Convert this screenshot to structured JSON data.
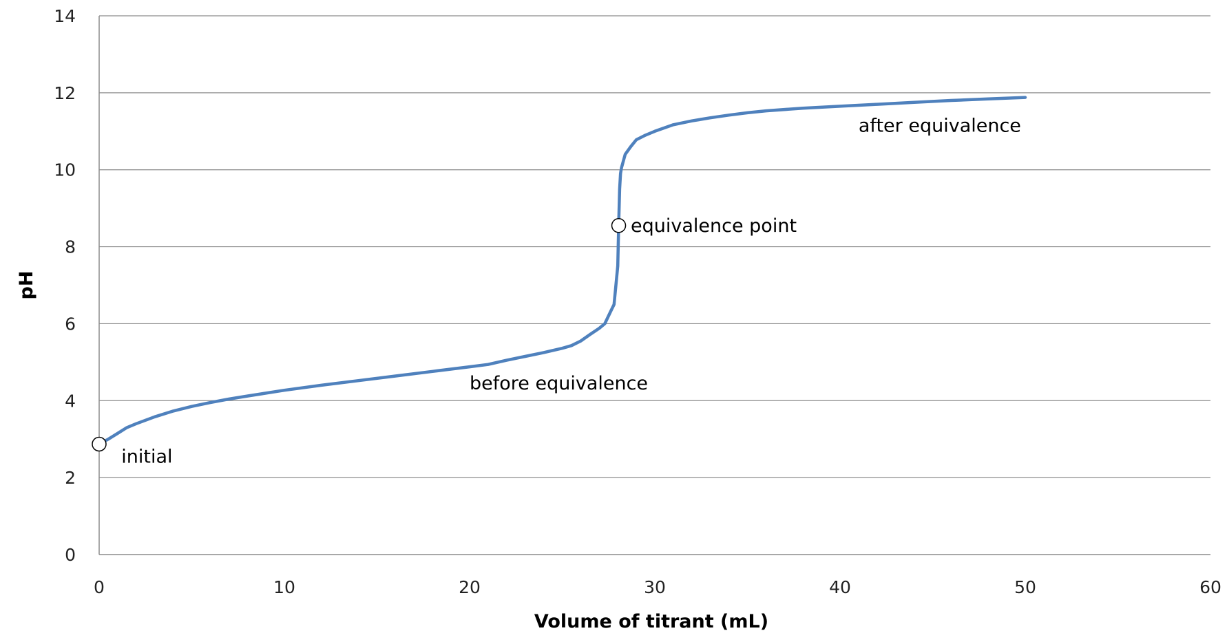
{
  "chart_data": {
    "type": "line",
    "xlabel": "Volume of titrant (mL)",
    "ylabel": "pH",
    "xlim": [
      0,
      60
    ],
    "ylim": [
      0,
      14
    ],
    "xticks": [
      "0",
      "10",
      "20",
      "30",
      "40",
      "50",
      "60"
    ],
    "yticks": [
      "0",
      "2",
      "4",
      "6",
      "8",
      "10",
      "12",
      "14"
    ],
    "grid": "horizontal",
    "line_color": "#4f81bd",
    "series": [
      {
        "x": [
          0,
          0.5,
          1,
          1.5,
          2,
          3,
          4,
          5,
          6,
          7,
          8,
          10,
          12,
          14,
          16,
          18,
          20,
          21,
          22,
          23,
          24,
          25,
          25.5,
          26,
          26.5,
          27,
          27.3,
          27.6,
          27.8,
          27.9,
          28,
          28.05,
          28.1,
          28.15,
          28.2,
          28.4,
          28.7,
          29,
          29.5,
          30,
          31,
          32,
          33,
          34,
          35,
          36,
          38,
          40,
          42,
          44,
          46,
          48,
          50
        ],
        "y": [
          2.87,
          3.0,
          3.15,
          3.3,
          3.4,
          3.58,
          3.73,
          3.85,
          3.95,
          4.04,
          4.12,
          4.27,
          4.4,
          4.52,
          4.64,
          4.76,
          4.88,
          4.94,
          5.05,
          5.15,
          5.25,
          5.36,
          5.43,
          5.55,
          5.72,
          5.88,
          6.0,
          6.3,
          6.5,
          7.0,
          7.5,
          8.55,
          9.5,
          9.9,
          10.05,
          10.4,
          10.6,
          10.78,
          10.9,
          11.0,
          11.17,
          11.27,
          11.35,
          11.42,
          11.48,
          11.53,
          11.6,
          11.65,
          11.7,
          11.75,
          11.8,
          11.84,
          11.88
        ]
      }
    ],
    "markers": [
      {
        "x": 0,
        "y": 2.87
      },
      {
        "x": 28.05,
        "y": 8.55
      }
    ],
    "annotations": [
      {
        "text": "initial",
        "x": 1.2,
        "y": 2.55
      },
      {
        "text": "equivalence point",
        "x": 28.7,
        "y": 8.55
      },
      {
        "text": "before equivalence",
        "x": 20,
        "y": 4.45
      },
      {
        "text": "after equivalence",
        "x": 41,
        "y": 11.15
      }
    ]
  }
}
